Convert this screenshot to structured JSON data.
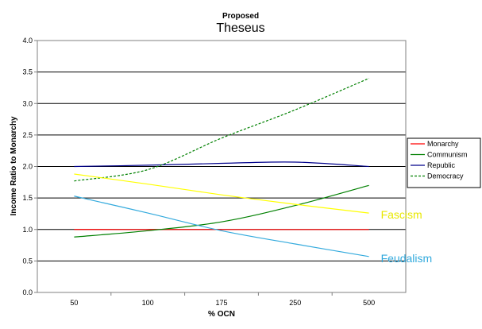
{
  "chart_data": {
    "type": "line",
    "title": "Proposed",
    "subtitle": "Theseus",
    "xlabel": "% OCN",
    "ylabel": "Income Ratio to Monarchy",
    "categories": [
      "50",
      "100",
      "175",
      "250",
      "500"
    ],
    "ylim": [
      0.0,
      4.0
    ],
    "yticks": [
      "0.0",
      "0.5",
      "1.0",
      "1.5",
      "2.0",
      "2.5",
      "3.0",
      "3.5",
      "4.0"
    ],
    "grid": true,
    "legend_position": "right",
    "series": [
      {
        "name": "Monarchy",
        "color": "#ff0000",
        "dashed": false,
        "in_legend": true,
        "values": [
          1.0,
          1.0,
          1.0,
          1.0,
          1.0
        ]
      },
      {
        "name": "Communism",
        "color": "#008000",
        "dashed": false,
        "in_legend": true,
        "values": [
          0.88,
          0.98,
          1.12,
          1.38,
          1.7
        ]
      },
      {
        "name": "Republic",
        "color": "#00008b",
        "dashed": false,
        "in_legend": true,
        "values": [
          2.0,
          2.02,
          2.05,
          2.07,
          2.0
        ]
      },
      {
        "name": "Democracy",
        "color": "#008000",
        "dashed": true,
        "in_legend": true,
        "values": [
          1.77,
          1.95,
          2.45,
          2.9,
          3.4
        ]
      },
      {
        "name": "Fascism",
        "color": "#ffff00",
        "dashed": false,
        "in_legend": false,
        "label_color": "#e8e800",
        "values": [
          1.88,
          1.72,
          1.55,
          1.4,
          1.26
        ]
      },
      {
        "name": "Feudalism",
        "color": "#33aadd",
        "dashed": false,
        "in_legend": false,
        "label_color": "#33aadd",
        "values": [
          1.53,
          1.26,
          0.98,
          0.77,
          0.57
        ]
      }
    ]
  }
}
